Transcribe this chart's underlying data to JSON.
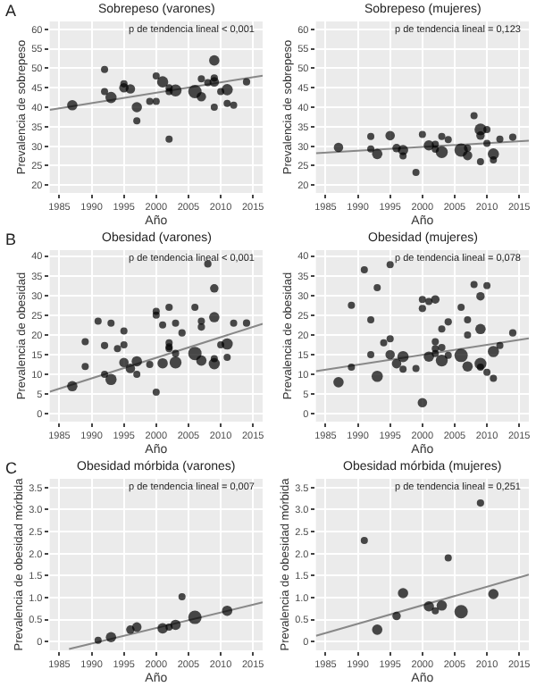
{
  "chart_data": [
    {
      "type": "bubble",
      "title": "Sobrepeso (varones)",
      "xlabel": "Año",
      "ylabel": "Prevalencia de sobrepeso",
      "annotations": [
        "p de tendencia lineal < 0,001",
        "A"
      ],
      "xlim": [
        1983.5,
        2016.5
      ],
      "xticks": [
        1985,
        1990,
        1995,
        2000,
        2005,
        2010,
        2015
      ],
      "ylim": [
        18,
        62
      ],
      "yticks": [
        20,
        25,
        30,
        35,
        40,
        45,
        50,
        55,
        60
      ],
      "grid": true,
      "series": [
        {
          "marker": "circle",
          "color": "#000000",
          "x": [
            1987,
            1992,
            1992,
            1993,
            1995,
            1995,
            1996,
            1997,
            1997,
            1999,
            2000,
            2000,
            2001,
            2002,
            2002,
            2002,
            2003,
            2006,
            2007,
            2007,
            2008,
            2009,
            2009,
            2009,
            2009,
            2010,
            2011,
            2011,
            2012,
            2014
          ],
          "values": [
            40.5,
            49.7,
            44,
            42.5,
            46,
            45,
            44.7,
            40,
            36.5,
            41.5,
            48,
            41.5,
            46.5,
            45,
            44,
            31.8,
            44.3,
            44,
            47.3,
            42.7,
            46.3,
            52,
            47.5,
            46.5,
            40,
            44,
            44.5,
            41,
            40.5,
            46.5
          ],
          "sizes": [
            0.6,
            0.2,
            0.2,
            0.7,
            0.3,
            0.5,
            0.5,
            0.6,
            0.15,
            0.15,
            0.2,
            0.2,
            0.7,
            0.2,
            0.2,
            0.2,
            0.8,
            1,
            0.2,
            0.5,
            0.3,
            0.6,
            0.3,
            0.5,
            0.15,
            0.2,
            0.7,
            0.2,
            0.2,
            0.3
          ]
        },
        {
          "type": "line",
          "color": "#888888",
          "x": [
            1983.5,
            2016.5
          ],
          "values": [
            39.3,
            48.1
          ]
        }
      ]
    },
    {
      "type": "bubble",
      "title": "Sobrepeso (mujeres)",
      "xlabel": "Año",
      "ylabel": "Prevalencia de sobrepeso",
      "annotations": [
        "p de tendencia lineal = 0,123"
      ],
      "xlim": [
        1983.5,
        2016.5
      ],
      "xticks": [
        1985,
        1990,
        1995,
        2000,
        2005,
        2010,
        2015
      ],
      "ylim": [
        18,
        62
      ],
      "yticks": [
        20,
        25,
        30,
        35,
        40,
        45,
        50,
        55,
        60
      ],
      "grid": true,
      "series": [
        {
          "marker": "circle",
          "color": "#000000",
          "x": [
            1987,
            1992,
            1992,
            1993,
            1995,
            1996,
            1997,
            1997,
            1999,
            2000,
            2001,
            2002,
            2002,
            2003,
            2003,
            2004,
            2006,
            2007,
            2007,
            2008,
            2009,
            2009,
            2009,
            2010,
            2010,
            2011,
            2011,
            2012,
            2014
          ],
          "values": [
            29.7,
            32.5,
            29.3,
            28,
            32.7,
            29.5,
            29,
            27.5,
            23.3,
            33,
            30.2,
            30.5,
            29.2,
            28.5,
            32.5,
            31.7,
            29,
            29.5,
            27.6,
            37.8,
            34.3,
            32.7,
            26,
            34.3,
            30.7,
            28,
            26.5,
            31.8,
            32.3
          ],
          "sizes": [
            0.5,
            0.2,
            0.2,
            0.6,
            0.5,
            0.4,
            0.6,
            0.2,
            0.15,
            0.2,
            0.6,
            0.2,
            0.2,
            0.8,
            0.15,
            0.2,
            1,
            0.2,
            0.5,
            0.2,
            0.8,
            0.4,
            0.2,
            0.15,
            0.15,
            0.7,
            0.2,
            0.2,
            0.3
          ]
        },
        {
          "type": "line",
          "color": "#888888",
          "x": [
            1983.5,
            2016.5
          ],
          "values": [
            28.2,
            31.4
          ]
        }
      ]
    },
    {
      "type": "bubble",
      "title": "Obesidad (varones)",
      "xlabel": "Año",
      "ylabel": "Prevalencia de obesidad",
      "annotations": [
        "p de tendencia lineal < 0,001",
        "B"
      ],
      "xlim": [
        1983.5,
        2016.5
      ],
      "xticks": [
        1985,
        1990,
        1995,
        2000,
        2005,
        2010,
        2015
      ],
      "ylim": [
        -2,
        41.5
      ],
      "yticks": [
        0,
        5,
        10,
        15,
        20,
        25,
        30,
        35,
        40
      ],
      "grid": true,
      "series": [
        {
          "marker": "circle",
          "color": "#000000",
          "x": [
            1987,
            1989,
            1989,
            1991,
            1992,
            1992,
            1993,
            1993,
            1994,
            1995,
            1995,
            1995,
            1996,
            1997,
            1997,
            1999,
            2000,
            2000,
            2000,
            2001,
            2001,
            2002,
            2002,
            2002,
            2002,
            2003,
            2003,
            2003,
            2004,
            2006,
            2006,
            2007,
            2007,
            2007,
            2008,
            2009,
            2009,
            2009,
            2009,
            2010,
            2011,
            2011,
            2012,
            2014
          ],
          "values": [
            7,
            18.3,
            12,
            23.5,
            17.3,
            10,
            23,
            8.7,
            16.5,
            21,
            17.5,
            13,
            11.5,
            13.3,
            10,
            12.5,
            26,
            25,
            5.5,
            22.5,
            12.8,
            27,
            18,
            17,
            16.5,
            23,
            15.3,
            13,
            20.5,
            27,
            15.3,
            23.5,
            22,
            13.5,
            38,
            31.8,
            24.5,
            14,
            12.7,
            17.5,
            17.7,
            14.3,
            23,
            23
          ],
          "sizes": [
            0.6,
            0.2,
            0.15,
            0.15,
            0.3,
            0.15,
            0.15,
            0.7,
            0.15,
            0.2,
            0.2,
            0.5,
            0.5,
            0.6,
            0.15,
            0.15,
            0.2,
            0.2,
            0.2,
            0.15,
            0.6,
            0.3,
            0.2,
            0.2,
            0.2,
            0.15,
            0.3,
            0.8,
            0.3,
            0.15,
            1,
            0.2,
            0.3,
            0.6,
            0.3,
            0.4,
            0.6,
            0.2,
            0.7,
            0.2,
            0.7,
            0.15,
            0.2,
            0.3
          ]
        },
        {
          "type": "line",
          "color": "#888888",
          "x": [
            1983.5,
            2016.5
          ],
          "values": [
            5.6,
            22.8
          ]
        }
      ]
    },
    {
      "type": "bubble",
      "title": "Obesidad (mujeres)",
      "xlabel": "Año",
      "ylabel": "Prevalencia de obesidad",
      "annotations": [
        "p de tendencia lineal = 0,078"
      ],
      "xlim": [
        1983.5,
        2016.5
      ],
      "xticks": [
        1985,
        1990,
        1995,
        2000,
        2005,
        2010,
        2015
      ],
      "ylim": [
        -2,
        41.5
      ],
      "yticks": [
        0,
        5,
        10,
        15,
        20,
        25,
        30,
        35,
        40
      ],
      "grid": true,
      "series": [
        {
          "marker": "circle",
          "color": "#000000",
          "x": [
            1987,
            1989,
            1989,
            1991,
            1992,
            1992,
            1993,
            1993,
            1994,
            1995,
            1995,
            1995,
            1996,
            1997,
            1997,
            1999,
            2000,
            2000,
            2000,
            2001,
            2001,
            2002,
            2002,
            2002,
            2002,
            2003,
            2003,
            2003,
            2004,
            2004,
            2006,
            2006,
            2007,
            2007,
            2007,
            2008,
            2009,
            2009,
            2009,
            2009,
            2010,
            2010,
            2011,
            2011,
            2012,
            2014
          ],
          "values": [
            8,
            27.5,
            11.8,
            36.5,
            23.8,
            15,
            32,
            9.5,
            18,
            37.8,
            19,
            15,
            12.7,
            14.5,
            11.3,
            11.5,
            29,
            26.7,
            2.8,
            28.5,
            14.5,
            29,
            18.3,
            16.5,
            15.3,
            21.5,
            16.8,
            13.5,
            23.3,
            14.8,
            27,
            14.8,
            23.8,
            20,
            12,
            32.8,
            29.8,
            21.5,
            12.7,
            11.8,
            32.5,
            10.5,
            15.8,
            9,
            17.3,
            20.5
          ],
          "sizes": [
            0.6,
            0.2,
            0.15,
            0.15,
            0.2,
            0.2,
            0.2,
            0.7,
            0.2,
            0.2,
            0.2,
            0.5,
            0.5,
            0.7,
            0.2,
            0.2,
            0.2,
            0.3,
            0.5,
            0.15,
            0.6,
            0.4,
            0.2,
            0.2,
            0.2,
            0.2,
            0.3,
            0.8,
            0.3,
            0.2,
            0.15,
            1,
            0.2,
            0.2,
            0.6,
            0.2,
            0.4,
            0.6,
            0.8,
            0.2,
            0.15,
            0.2,
            0.7,
            0.2,
            0.2,
            0.3
          ]
        },
        {
          "type": "line",
          "color": "#888888",
          "x": [
            1983.5,
            2016.5
          ],
          "values": [
            10.8,
            19.1
          ]
        }
      ]
    },
    {
      "type": "bubble",
      "title": "Obesidad mórbida (varones)",
      "xlabel": "Año",
      "ylabel": "Prevalencia de obesidad mórbida",
      "annotations": [
        "p de tendencia lineal = 0,007",
        "C"
      ],
      "xlim": [
        1983.5,
        2016.5
      ],
      "xticks": [
        1985,
        1990,
        1995,
        2000,
        2005,
        2010,
        2015
      ],
      "ylim": [
        -0.2,
        3.7
      ],
      "yticks": [
        0,
        {
          "value": 0.5,
          "label": "0.5"
        },
        {
          "value": 1,
          "label": "1.0"
        },
        {
          "value": 1.5,
          "label": "1.5"
        },
        {
          "value": 2,
          "label": "2.0"
        },
        {
          "value": 2.5,
          "label": "2.5"
        },
        {
          "value": 3,
          "label": "3.0"
        },
        {
          "value": 3.5,
          "label": "3.5"
        }
      ],
      "grid": true,
      "series": [
        {
          "marker": "circle",
          "color": "#000000",
          "x": [
            1991,
            1993,
            1996,
            1997,
            2001,
            2002,
            2003,
            2004,
            2006,
            2011
          ],
          "values": [
            0.03,
            0.1,
            0.27,
            0.33,
            0.3,
            0.33,
            0.38,
            1.02,
            0.55,
            0.7
          ],
          "sizes": [
            0.15,
            0.6,
            0.4,
            0.5,
            0.6,
            0.2,
            0.6,
            0.2,
            1,
            0.6
          ]
        },
        {
          "type": "line",
          "color": "#888888",
          "x": [
            1986.5,
            2016.5
          ],
          "values": [
            -0.17,
            0.89
          ]
        }
      ]
    },
    {
      "type": "bubble",
      "title": "Obesidad mórbida (mujeres)",
      "xlabel": "Año",
      "ylabel": "Prevalencia de obesidad mórbida",
      "annotations": [
        "p de tendencia lineal = 0,251"
      ],
      "xlim": [
        1983.5,
        2016.5
      ],
      "xticks": [
        1985,
        1990,
        1995,
        2000,
        2005,
        2010,
        2015
      ],
      "ylim": [
        -0.2,
        3.7
      ],
      "yticks": [
        0,
        {
          "value": 0.5,
          "label": "0.5"
        },
        {
          "value": 1,
          "label": "1.0"
        },
        {
          "value": 1.5,
          "label": "1.5"
        },
        {
          "value": 2,
          "label": "2.0"
        },
        {
          "value": 2.5,
          "label": "2.5"
        },
        {
          "value": 3,
          "label": "3.0"
        },
        {
          "value": 3.5,
          "label": "3.5"
        }
      ],
      "grid": true,
      "series": [
        {
          "marker": "circle",
          "color": "#000000",
          "x": [
            1991,
            1993,
            1996,
            1997,
            2001,
            2002,
            2003,
            2004,
            2006,
            2009,
            2011
          ],
          "values": [
            2.3,
            0.27,
            0.58,
            1.1,
            0.8,
            0.7,
            0.82,
            1.9,
            0.68,
            3.15,
            1.08
          ],
          "sizes": [
            0.15,
            0.6,
            0.4,
            0.6,
            0.6,
            0.2,
            0.6,
            0.2,
            1,
            0.3,
            0.6
          ]
        },
        {
          "type": "line",
          "color": "#888888",
          "x": [
            1983.5,
            2016.5
          ],
          "values": [
            0.13,
            1.52
          ]
        }
      ]
    }
  ]
}
